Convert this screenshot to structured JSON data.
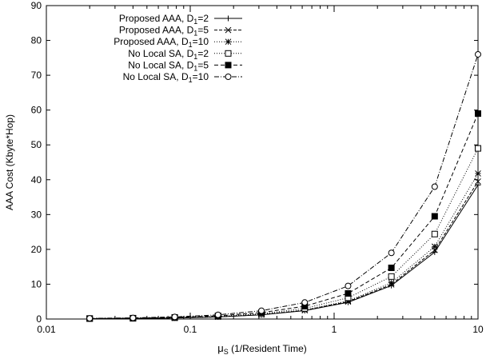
{
  "chart_data": {
    "type": "line",
    "x_scale": "log",
    "xlim": [
      0.01,
      10
    ],
    "ylim": [
      0,
      90
    ],
    "grid": false,
    "legend_position": "top-left",
    "xlabel": {
      "symbol": "μ",
      "subscript": "S",
      "text": " (1/Resident Time)"
    },
    "ylabel": "AAA Cost (Kbyte*Hop)",
    "x_ticks": [
      {
        "value": 0.01,
        "label": "0.01"
      },
      {
        "value": 0.1,
        "label": "0.1"
      },
      {
        "value": 1,
        "label": "1"
      },
      {
        "value": 10,
        "label": "10"
      }
    ],
    "y_ticks": [
      {
        "value": 0,
        "label": "0"
      },
      {
        "value": 10,
        "label": "10"
      },
      {
        "value": 20,
        "label": "20"
      },
      {
        "value": 30,
        "label": "30"
      },
      {
        "value": 40,
        "label": "40"
      },
      {
        "value": 50,
        "label": "50"
      },
      {
        "value": 60,
        "label": "60"
      },
      {
        "value": 70,
        "label": "70"
      },
      {
        "value": 80,
        "label": "80"
      },
      {
        "value": 90,
        "label": "90"
      }
    ],
    "x": [
      0.02,
      0.04,
      0.078,
      0.156,
      0.3125,
      0.625,
      1.25,
      2.5,
      5,
      10
    ],
    "series": [
      {
        "name": "Proposed AAA, D1=2",
        "label_main": "Proposed AAA, D",
        "label_sub": "1",
        "label_tail": "=2",
        "marker": "plus",
        "dash": "",
        "color": "#000000",
        "values": [
          0.1,
          0.15,
          0.3,
          0.6,
          1.2,
          2.4,
          4.8,
          9.6,
          19.2,
          38.5
        ]
      },
      {
        "name": "Proposed AAA, D1=5",
        "label_main": "Proposed AAA, D",
        "label_sub": "1",
        "label_tail": "=5",
        "marker": "cross",
        "dash": "4,2",
        "color": "#000000",
        "values": [
          0.1,
          0.16,
          0.31,
          0.62,
          1.25,
          2.5,
          5.0,
          9.9,
          19.8,
          39.5
        ]
      },
      {
        "name": "Proposed AAA, D1=10",
        "label_main": "Proposed AAA, D",
        "label_sub": "1",
        "label_tail": "=10",
        "marker": "star",
        "dash": "1,2",
        "color": "#000000",
        "values": [
          0.11,
          0.17,
          0.33,
          0.66,
          1.3,
          2.6,
          5.2,
          10.4,
          20.8,
          41.8
        ]
      },
      {
        "name": "No Local SA, D1=2",
        "label_main": "No Local SA, D",
        "label_sub": "1",
        "label_tail": "=2",
        "marker": "square-open",
        "dash": "1,2",
        "color": "#000000",
        "values": [
          0.12,
          0.2,
          0.38,
          0.76,
          1.52,
          3.05,
          6.1,
          12.2,
          24.4,
          49.0
        ]
      },
      {
        "name": "No Local SA, D1=5",
        "label_main": "No Local SA, D",
        "label_sub": "1",
        "label_tail": "=5",
        "marker": "square-filled",
        "dash": "5,3",
        "color": "#000000",
        "values": [
          0.15,
          0.25,
          0.46,
          0.92,
          1.84,
          3.68,
          7.35,
          14.7,
          29.5,
          59.0
        ]
      },
      {
        "name": "No Local SA, D1=10",
        "label_main": "No Local SA, D",
        "label_sub": "1",
        "label_tail": "=10",
        "marker": "circle-open",
        "dash": "6,2,1,2",
        "color": "#000000",
        "values": [
          0.2,
          0.33,
          0.6,
          1.2,
          2.38,
          4.75,
          9.5,
          19.0,
          38.0,
          76.0
        ]
      }
    ]
  }
}
